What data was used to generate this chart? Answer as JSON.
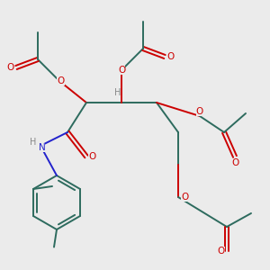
{
  "bg_color": "#ebebeb",
  "bond_color": "#2d6b5e",
  "oxygen_color": "#cc0000",
  "nitrogen_color": "#2222cc",
  "hydrogen_color": "#888888",
  "lw": 1.4,
  "fs": 7.5,
  "xlim": [
    0,
    10
  ],
  "ylim": [
    0,
    10
  ]
}
